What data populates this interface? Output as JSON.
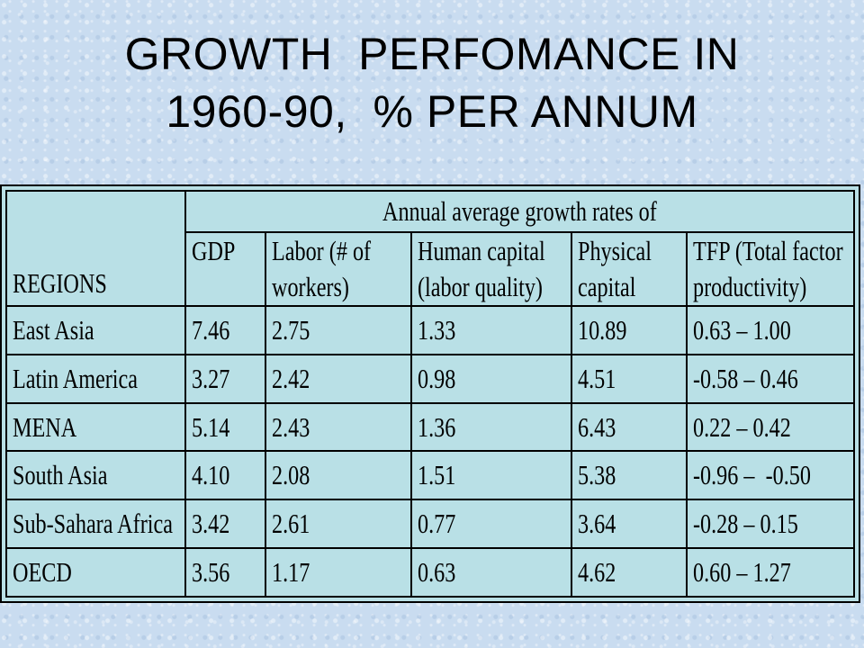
{
  "title": {
    "line1": "GROWTH  PERFOMANCE IN",
    "line2": "1960-90,  % PER ANNUM"
  },
  "table": {
    "row_header_label": "REGIONS",
    "group_header": "Annual average growth rates of",
    "columns": [
      {
        "line1": "GDP",
        "line2": ""
      },
      {
        "line1": "Labor (# of",
        "line2": "workers)"
      },
      {
        "line1": "Human capital",
        "line2": "(labor quality)"
      },
      {
        "line1": "Physical",
        "line2": "capital"
      },
      {
        "line1": "TFP (Total factor",
        "line2": "productivity)"
      }
    ],
    "rows": [
      {
        "region": "East Asia",
        "values": [
          "7.46",
          "2.75",
          "1.33",
          "10.89",
          "0.63 – 1.00"
        ]
      },
      {
        "region": "Latin America",
        "values": [
          "3.27",
          "2.42",
          "0.98",
          "4.51",
          "-0.58 – 0.46"
        ]
      },
      {
        "region": "MENA",
        "values": [
          "5.14",
          "2.43",
          "1.36",
          "6.43",
          "0.22 – 0.42"
        ]
      },
      {
        "region": "South Asia",
        "values": [
          "4.10",
          "2.08",
          "1.51",
          "5.38",
          "-0.96 –  -0.50"
        ]
      },
      {
        "region": "Sub-Sahara Africa",
        "values": [
          "3.42",
          "2.61",
          "0.77",
          "3.64",
          "-0.28 – 0.15"
        ]
      },
      {
        "region": "OECD",
        "values": [
          "3.56",
          "1.17",
          "0.63",
          "4.62",
          "0.60 – 1.27"
        ]
      }
    ]
  }
}
